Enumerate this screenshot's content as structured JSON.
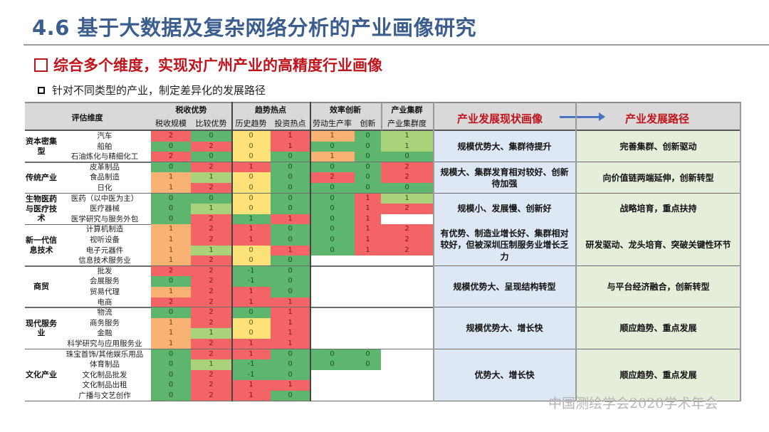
{
  "header": {
    "title": "4.6 基于大数据及复杂网络分析的产业画像研究",
    "subtitle": "综合多个维度，实现对广州产业的高精度行业画像",
    "bullet": "针对不同类型的产业，制定差异化的发展路径"
  },
  "table": {
    "dimension_label": "评估维度",
    "groups": [
      {
        "label": "税收优势",
        "cols": [
          "税收规模",
          "比较优势"
        ]
      },
      {
        "label": "趋势热点",
        "cols": [
          "历史趋势",
          "投资热点"
        ]
      },
      {
        "label": "效率创新",
        "cols": [
          "劳动生产率",
          "创新"
        ]
      },
      {
        "label": "产业集群",
        "cols": [
          "产业集群度"
        ]
      }
    ],
    "status_header": "产业发展现状画像",
    "path_header": "产业发展路径",
    "colors": {
      "red": "#f26466",
      "green": "#5db56e",
      "yellow": "#fde27a",
      "orange": "#f8b273",
      "light_green": "#a9d27a"
    },
    "categories": [
      {
        "name": "资本密集型",
        "status": "规模优势大、集群待提升",
        "path": "完善集群、创新驱动",
        "rows": [
          {
            "name": "汽车",
            "values": [
              "2",
              "0",
              "0",
              "1",
              "1",
              "0",
              "1"
            ]
          },
          {
            "name": "船舶",
            "values": [
              "0",
              "2",
              "0",
              "1",
              "0",
              "0",
              "1"
            ]
          },
          {
            "name": "石油炼化与精细化工",
            "values": [
              "2",
              "0",
              "0",
              "0",
              "1",
              "0",
              "0"
            ]
          }
        ]
      },
      {
        "name": "传统产业",
        "status": "规模大、集群发育相对较好、创新待加强",
        "path": "向价值链两端延伸，创新转型",
        "rows": [
          {
            "name": "皮革制品",
            "values": [
              "0",
              "2",
              "1",
              "0",
              "0",
              "0",
              "2"
            ]
          },
          {
            "name": "食品制造",
            "values": [
              "1",
              "1",
              "0",
              "0",
              "2",
              "0",
              "2"
            ]
          },
          {
            "name": "日化",
            "values": [
              "1",
              "2",
              "0",
              "0",
              "0",
              "0",
              "0"
            ]
          }
        ]
      },
      {
        "name": "生物医药与医疗技术",
        "status": "规模小、发展慢、创新好",
        "path": "战略培育，重点扶持",
        "rows": [
          {
            "name": "医药（以中医为主）",
            "values": [
              "0",
              "0",
              "0",
              "0",
              "0",
              "1",
              "1"
            ]
          },
          {
            "name": "医疗器械",
            "values": [
              "0",
              "1",
              "0",
              "0",
              "0",
              "1",
              "2"
            ]
          },
          {
            "name": "医学研究与服务外包",
            "values": [
              "0",
              "2",
              "1",
              "1",
              "0",
              "1",
              ""
            ]
          }
        ]
      },
      {
        "name": "新一代信息技术",
        "status": "有优势、制造业增长好、集群相对较好，但被深圳压制服务业增长乏力",
        "path": "研发驱动、龙头培育、突破关键性环节",
        "rows": [
          {
            "name": "计算机制造",
            "values": [
              "1",
              "2",
              "1",
              "0",
              "0",
              "1",
              "2"
            ]
          },
          {
            "name": "视听设备",
            "values": [
              "1",
              "2",
              "1",
              "0",
              "0",
              "1",
              "2"
            ]
          },
          {
            "name": "电子元器件",
            "values": [
              "1",
              "1",
              "0",
              "1",
              "0",
              "1",
              "2"
            ]
          },
          {
            "name": "信息技术服务业",
            "values": [
              "1",
              "2",
              "0",
              "0",
              "",
              "",
              ""
            ]
          }
        ]
      },
      {
        "name": "商贸",
        "status": "规模优势大、呈现结构转型",
        "path": "与平台经济融合，创新转型",
        "rows": [
          {
            "name": "批发",
            "values": [
              "2",
              "2",
              "-1",
              "0",
              "",
              "",
              ""
            ]
          },
          {
            "name": "会展服务",
            "values": [
              "0",
              "2",
              "-1",
              "0",
              "",
              "",
              ""
            ]
          },
          {
            "name": "贸易代理",
            "values": [
              "1",
              "2",
              "1",
              "0",
              "",
              "",
              ""
            ]
          },
          {
            "name": "电商",
            "values": [
              "2",
              "2",
              "1",
              "1",
              "",
              "",
              ""
            ]
          }
        ]
      },
      {
        "name": "现代服务业",
        "status": "规模优势大、增长快",
        "path": "顺应趋势、重点发展",
        "rows": [
          {
            "name": "物流",
            "values": [
              "0",
              "2",
              "0",
              "1",
              "",
              "",
              ""
            ]
          },
          {
            "name": "商务服务",
            "values": [
              "1",
              "2",
              "0",
              "1",
              "",
              "",
              ""
            ]
          },
          {
            "name": "金融",
            "values": [
              "1",
              "1",
              "0",
              "1",
              "",
              "",
              ""
            ]
          },
          {
            "name": "科学研究与应用服务业",
            "values": [
              "1",
              "2",
              "1",
              "1",
              "",
              "",
              ""
            ]
          }
        ]
      },
      {
        "name": "文化产业",
        "status": "优势大、增长快",
        "path": "顺应趋势、重点发展",
        "rows": [
          {
            "name": "珠宝首饰/其他娱乐用品",
            "values": [
              "0",
              "2",
              "1",
              "0",
              "0",
              "0",
              ""
            ]
          },
          {
            "name": "体育制品",
            "values": [
              "0",
              "1",
              "-1",
              "0",
              "0",
              "0",
              ""
            ]
          },
          {
            "name": "文化制品批发",
            "values": [
              "0",
              "2",
              "-1",
              "0",
              "",
              "",
              ""
            ]
          },
          {
            "name": "文化制品出租",
            "values": [
              "0",
              "2",
              "1",
              "1",
              "",
              "",
              ""
            ]
          },
          {
            "name": "广播与文艺创作",
            "values": [
              "0",
              "2",
              "1",
              "0",
              "",
              "",
              ""
            ]
          }
        ]
      }
    ]
  },
  "footer": {
    "watermark": "中国测绘学会2020学术年会"
  }
}
